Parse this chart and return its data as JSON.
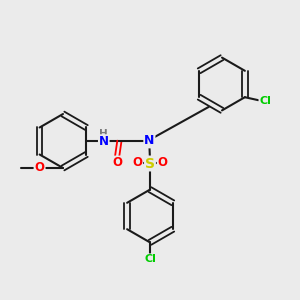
{
  "background_color": "#ebebeb",
  "bond_color": "#1a1a1a",
  "colors": {
    "N": "#0000ff",
    "O": "#ff0000",
    "S": "#cccc00",
    "Cl": "#00cc00",
    "H": "#7a7a7a",
    "C": "#1a1a1a"
  },
  "figsize": [
    3.0,
    3.0
  ],
  "dpi": 100
}
